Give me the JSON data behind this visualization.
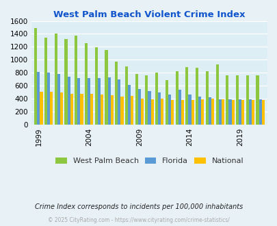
{
  "title": "West Palm Beach Violent Crime Index",
  "subtitle": "Crime Index corresponds to incidents per 100,000 inhabitants",
  "footer": "© 2025 CityRating.com - https://www.cityrating.com/crime-statistics/",
  "years": [
    1999,
    2000,
    2001,
    2002,
    2003,
    2004,
    2005,
    2006,
    2007,
    2008,
    2009,
    2010,
    2011,
    2012,
    2013,
    2014,
    2015,
    2016,
    2017,
    2018,
    2019,
    2020,
    2021
  ],
  "wpb": [
    1490,
    1340,
    1400,
    1320,
    1370,
    1255,
    1190,
    1150,
    975,
    895,
    785,
    760,
    800,
    685,
    820,
    885,
    875,
    820,
    925,
    760,
    760,
    760,
    760
  ],
  "florida": [
    815,
    800,
    780,
    735,
    715,
    715,
    715,
    730,
    695,
    610,
    550,
    520,
    490,
    465,
    540,
    465,
    435,
    415,
    390,
    385,
    385,
    385,
    385
  ],
  "national": [
    505,
    505,
    495,
    470,
    470,
    475,
    465,
    455,
    430,
    440,
    400,
    385,
    400,
    375,
    375,
    375,
    390,
    395,
    385,
    380,
    380,
    380,
    380
  ],
  "wpb_color": "#8dc63f",
  "florida_color": "#5b9bd5",
  "national_color": "#ffc000",
  "bg_color": "#e8f2f6",
  "plot_bg": "#ddeef5",
  "title_color": "#1155cc",
  "subtitle_color": "#222222",
  "footer_color": "#aaaaaa",
  "ylim": [
    0,
    1600
  ],
  "yticks": [
    0,
    200,
    400,
    600,
    800,
    1000,
    1200,
    1400,
    1600
  ],
  "xtick_year_positions": [
    1999,
    2004,
    2009,
    2014,
    2019
  ],
  "xtick_labels": [
    "1999",
    "2004",
    "2009",
    "2014",
    "2019"
  ],
  "legend_labels": [
    "West Palm Beach",
    "Florida",
    "National"
  ]
}
